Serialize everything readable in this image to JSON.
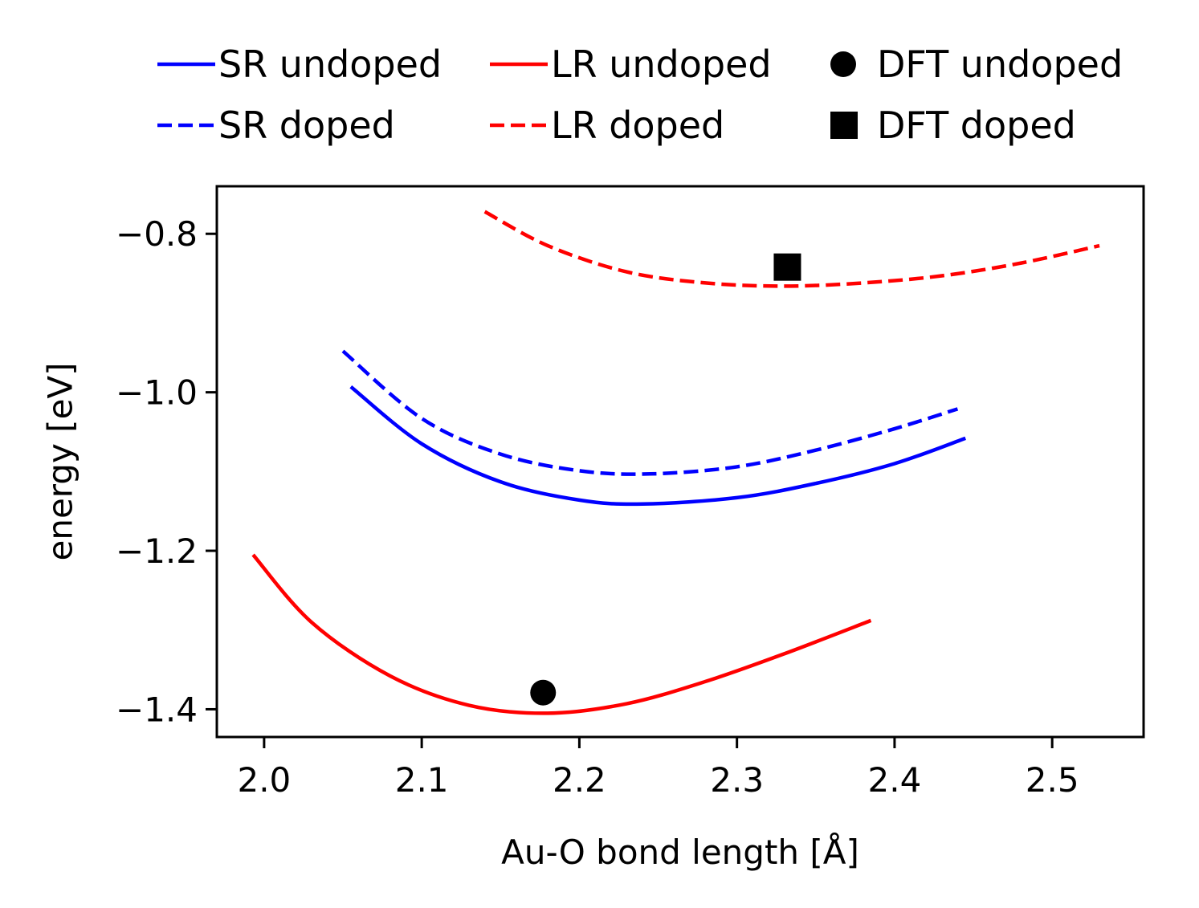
{
  "chart_data": {
    "type": "line",
    "xlabel": "Au-O bond length [Å]",
    "ylabel": "energy [eV]",
    "xlim": [
      1.97,
      2.558
    ],
    "ylim": [
      -1.435,
      -0.74
    ],
    "xticks": [
      2.0,
      2.1,
      2.2,
      2.3,
      2.4,
      2.5
    ],
    "xtick_labels": [
      "2.0",
      "2.1",
      "2.2",
      "2.3",
      "2.4",
      "2.5"
    ],
    "yticks": [
      -1.4,
      -1.2,
      -1.0,
      -0.8
    ],
    "ytick_labels": [
      "−1.4",
      "−1.2",
      "−1.0",
      "−0.8"
    ],
    "grid": false,
    "legend_placement": "top, outside, 3 columns",
    "series": [
      {
        "name": "SR undoped",
        "style": "solid",
        "color": "#0000ff",
        "x": [
          2.055,
          2.1,
          2.15,
          2.2,
          2.24,
          2.3,
          2.35,
          2.4,
          2.445
        ],
        "y": [
          -0.993,
          -1.065,
          -1.113,
          -1.136,
          -1.141,
          -1.133,
          -1.115,
          -1.09,
          -1.058
        ]
      },
      {
        "name": "SR doped",
        "style": "dashed",
        "color": "#0000ff",
        "x": [
          2.05,
          2.1,
          2.15,
          2.2,
          2.245,
          2.3,
          2.35,
          2.4,
          2.44
        ],
        "y": [
          -0.948,
          -1.033,
          -1.078,
          -1.099,
          -1.103,
          -1.094,
          -1.073,
          -1.046,
          -1.021
        ]
      },
      {
        "name": "LR undoped",
        "style": "solid",
        "color": "#ff0000",
        "x": [
          1.993,
          2.03,
          2.08,
          2.13,
          2.18,
          2.23,
          2.28,
          2.33,
          2.385
        ],
        "y": [
          -1.205,
          -1.29,
          -1.358,
          -1.395,
          -1.405,
          -1.393,
          -1.365,
          -1.33,
          -1.288
        ]
      },
      {
        "name": "LR doped",
        "style": "dashed",
        "color": "#ff0000",
        "x": [
          2.14,
          2.18,
          2.23,
          2.28,
          2.33,
          2.38,
          2.43,
          2.48,
          2.53
        ],
        "y": [
          -0.772,
          -0.815,
          -0.848,
          -0.862,
          -0.866,
          -0.862,
          -0.853,
          -0.837,
          -0.815
        ]
      },
      {
        "name": "DFT undoped",
        "style": "marker-circle",
        "color": "#000000",
        "x": [
          2.177
        ],
        "y": [
          -1.379
        ]
      },
      {
        "name": "DFT doped",
        "style": "marker-square",
        "color": "#000000",
        "x": [
          2.332
        ],
        "y": [
          -0.842
        ]
      }
    ]
  }
}
